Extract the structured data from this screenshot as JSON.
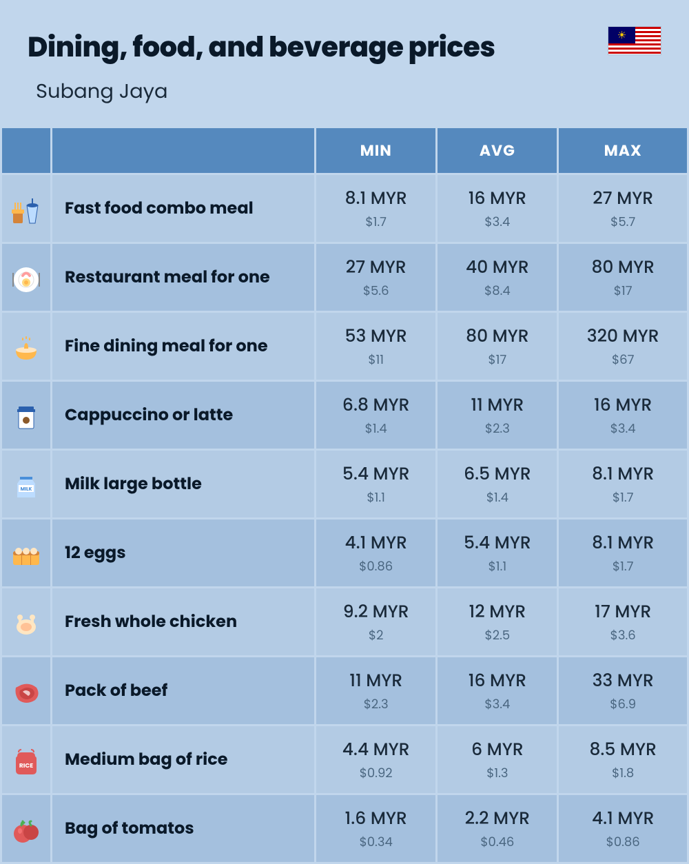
{
  "header": {
    "title": "Dining, food, and beverage prices",
    "subtitle": "Subang Jaya"
  },
  "table_style": {
    "type": "table",
    "header_background": "#5589be",
    "header_text_color": "#ffffff",
    "header_fontsize": 22,
    "row_background_even": "#b3cbe4",
    "row_background_odd": "#a4c0de",
    "body_background": "#c1d6ec",
    "label_fontsize": 24,
    "price_main_fontsize": 25,
    "price_usd_fontsize": 18,
    "price_usd_color": "#4a6680",
    "text_color": "#1a2a3a"
  },
  "columns": [
    "",
    "",
    "MIN",
    "AVG",
    "MAX"
  ],
  "rows": [
    {
      "icon": "fast-food",
      "label": "Fast food combo meal",
      "min": {
        "myr": "8.1 MYR",
        "usd": "$1.7"
      },
      "avg": {
        "myr": "16 MYR",
        "usd": "$3.4"
      },
      "max": {
        "myr": "27 MYR",
        "usd": "$5.7"
      }
    },
    {
      "icon": "restaurant",
      "label": "Restaurant meal for one",
      "min": {
        "myr": "27 MYR",
        "usd": "$5.6"
      },
      "avg": {
        "myr": "40 MYR",
        "usd": "$8.4"
      },
      "max": {
        "myr": "80 MYR",
        "usd": "$17"
      }
    },
    {
      "icon": "fine-dining",
      "label": "Fine dining meal for one",
      "min": {
        "myr": "53 MYR",
        "usd": "$11"
      },
      "avg": {
        "myr": "80 MYR",
        "usd": "$17"
      },
      "max": {
        "myr": "320 MYR",
        "usd": "$67"
      }
    },
    {
      "icon": "coffee",
      "label": "Cappuccino or latte",
      "min": {
        "myr": "6.8 MYR",
        "usd": "$1.4"
      },
      "avg": {
        "myr": "11 MYR",
        "usd": "$2.3"
      },
      "max": {
        "myr": "16 MYR",
        "usd": "$3.4"
      }
    },
    {
      "icon": "milk",
      "label": "Milk large bottle",
      "min": {
        "myr": "5.4 MYR",
        "usd": "$1.1"
      },
      "avg": {
        "myr": "6.5 MYR",
        "usd": "$1.4"
      },
      "max": {
        "myr": "8.1 MYR",
        "usd": "$1.7"
      }
    },
    {
      "icon": "eggs",
      "label": "12 eggs",
      "min": {
        "myr": "4.1 MYR",
        "usd": "$0.86"
      },
      "avg": {
        "myr": "5.4 MYR",
        "usd": "$1.1"
      },
      "max": {
        "myr": "8.1 MYR",
        "usd": "$1.7"
      }
    },
    {
      "icon": "chicken",
      "label": "Fresh whole chicken",
      "min": {
        "myr": "9.2 MYR",
        "usd": "$2"
      },
      "avg": {
        "myr": "12 MYR",
        "usd": "$2.5"
      },
      "max": {
        "myr": "17 MYR",
        "usd": "$3.6"
      }
    },
    {
      "icon": "beef",
      "label": "Pack of beef",
      "min": {
        "myr": "11 MYR",
        "usd": "$2.3"
      },
      "avg": {
        "myr": "16 MYR",
        "usd": "$3.4"
      },
      "max": {
        "myr": "33 MYR",
        "usd": "$6.9"
      }
    },
    {
      "icon": "rice",
      "label": "Medium bag of rice",
      "min": {
        "myr": "4.4 MYR",
        "usd": "$0.92"
      },
      "avg": {
        "myr": "6 MYR",
        "usd": "$1.3"
      },
      "max": {
        "myr": "8.5 MYR",
        "usd": "$1.8"
      }
    },
    {
      "icon": "tomato",
      "label": "Bag of tomatos",
      "min": {
        "myr": "1.6 MYR",
        "usd": "$0.34"
      },
      "avg": {
        "myr": "2.2 MYR",
        "usd": "$0.46"
      },
      "max": {
        "myr": "4.1 MYR",
        "usd": "$0.86"
      }
    }
  ],
  "icons": {
    "fast-food": {
      "primary": "#ffb84d",
      "secondary": "#bcdcff",
      "accent": "#d4843a"
    },
    "restaurant": {
      "primary": "#ffffff",
      "secondary": "#ff9e9e",
      "accent": "#ffd980"
    },
    "fine-dining": {
      "primary": "#ffb84d",
      "secondary": "#ffe6c2"
    },
    "coffee": {
      "primary": "#ffffff",
      "secondary": "#8b5a2b",
      "accent": "#2b60ad"
    },
    "milk": {
      "primary": "#bcdcff",
      "secondary": "#ffffff",
      "accent": "#4a8fd9"
    },
    "eggs": {
      "primary": "#ffb84d",
      "secondary": "#ffe6c2"
    },
    "chicken": {
      "primary": "#ffe6c2",
      "secondary": "#ff9e6a"
    },
    "beef": {
      "primary": "#e05a5a",
      "secondary": "#ffffff"
    },
    "rice": {
      "primary": "#e05a5a",
      "secondary": "#ffffff"
    },
    "tomato": {
      "primary": "#e05a5a",
      "secondary": "#4caf50"
    }
  },
  "flag": {
    "stripe_red": "#cc0001",
    "stripe_white": "#ffffff",
    "canton": "#010066",
    "sun": "#ffcc00"
  }
}
